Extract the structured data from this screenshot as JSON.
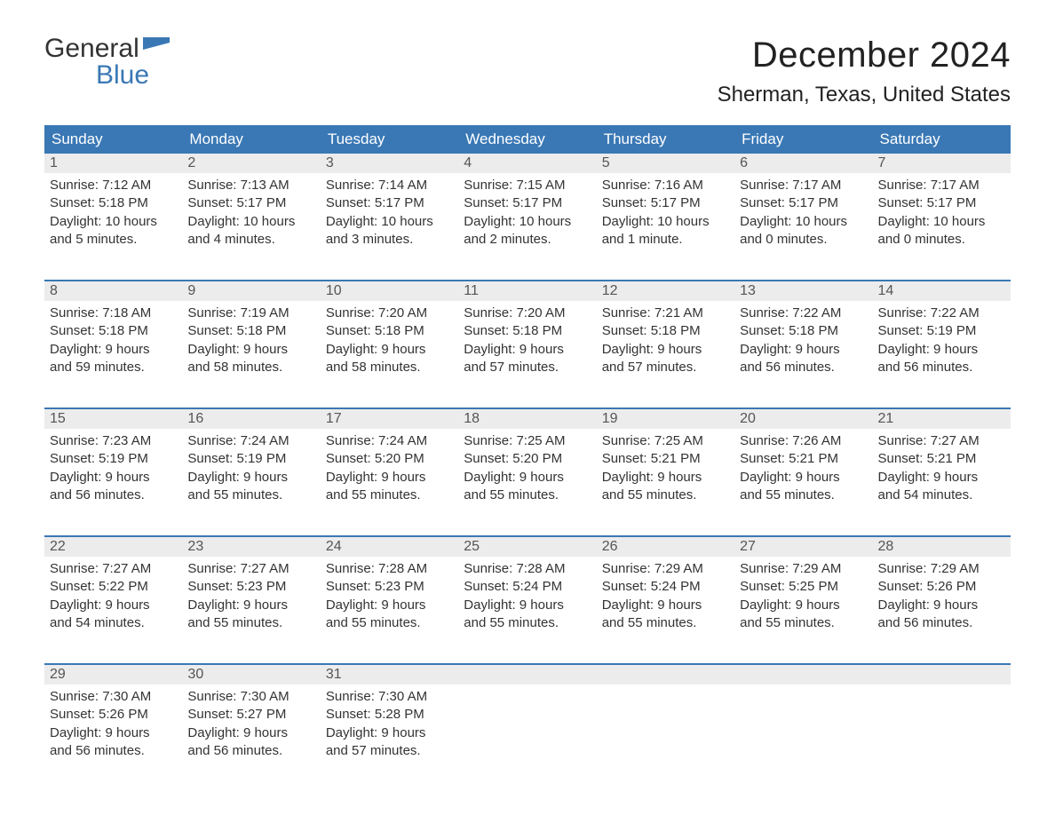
{
  "logo": {
    "line1": "General",
    "line2": "Blue"
  },
  "title": "December 2024",
  "location": "Sherman, Texas, United States",
  "colors": {
    "header_bg": "#3a78b5",
    "header_fg": "#ffffff",
    "daynum_bg": "#ececec",
    "sep_border": "#3a78b5",
    "text": "#333333",
    "logo_blue": "#3a78b5"
  },
  "day_headers": [
    "Sunday",
    "Monday",
    "Tuesday",
    "Wednesday",
    "Thursday",
    "Friday",
    "Saturday"
  ],
  "weeks": [
    [
      {
        "n": "1",
        "sr": "Sunrise: 7:12 AM",
        "ss": "Sunset: 5:18 PM",
        "d1": "Daylight: 10 hours",
        "d2": "and 5 minutes."
      },
      {
        "n": "2",
        "sr": "Sunrise: 7:13 AM",
        "ss": "Sunset: 5:17 PM",
        "d1": "Daylight: 10 hours",
        "d2": "and 4 minutes."
      },
      {
        "n": "3",
        "sr": "Sunrise: 7:14 AM",
        "ss": "Sunset: 5:17 PM",
        "d1": "Daylight: 10 hours",
        "d2": "and 3 minutes."
      },
      {
        "n": "4",
        "sr": "Sunrise: 7:15 AM",
        "ss": "Sunset: 5:17 PM",
        "d1": "Daylight: 10 hours",
        "d2": "and 2 minutes."
      },
      {
        "n": "5",
        "sr": "Sunrise: 7:16 AM",
        "ss": "Sunset: 5:17 PM",
        "d1": "Daylight: 10 hours",
        "d2": "and 1 minute."
      },
      {
        "n": "6",
        "sr": "Sunrise: 7:17 AM",
        "ss": "Sunset: 5:17 PM",
        "d1": "Daylight: 10 hours",
        "d2": "and 0 minutes."
      },
      {
        "n": "7",
        "sr": "Sunrise: 7:17 AM",
        "ss": "Sunset: 5:17 PM",
        "d1": "Daylight: 10 hours",
        "d2": "and 0 minutes."
      }
    ],
    [
      {
        "n": "8",
        "sr": "Sunrise: 7:18 AM",
        "ss": "Sunset: 5:18 PM",
        "d1": "Daylight: 9 hours",
        "d2": "and 59 minutes."
      },
      {
        "n": "9",
        "sr": "Sunrise: 7:19 AM",
        "ss": "Sunset: 5:18 PM",
        "d1": "Daylight: 9 hours",
        "d2": "and 58 minutes."
      },
      {
        "n": "10",
        "sr": "Sunrise: 7:20 AM",
        "ss": "Sunset: 5:18 PM",
        "d1": "Daylight: 9 hours",
        "d2": "and 58 minutes."
      },
      {
        "n": "11",
        "sr": "Sunrise: 7:20 AM",
        "ss": "Sunset: 5:18 PM",
        "d1": "Daylight: 9 hours",
        "d2": "and 57 minutes."
      },
      {
        "n": "12",
        "sr": "Sunrise: 7:21 AM",
        "ss": "Sunset: 5:18 PM",
        "d1": "Daylight: 9 hours",
        "d2": "and 57 minutes."
      },
      {
        "n": "13",
        "sr": "Sunrise: 7:22 AM",
        "ss": "Sunset: 5:18 PM",
        "d1": "Daylight: 9 hours",
        "d2": "and 56 minutes."
      },
      {
        "n": "14",
        "sr": "Sunrise: 7:22 AM",
        "ss": "Sunset: 5:19 PM",
        "d1": "Daylight: 9 hours",
        "d2": "and 56 minutes."
      }
    ],
    [
      {
        "n": "15",
        "sr": "Sunrise: 7:23 AM",
        "ss": "Sunset: 5:19 PM",
        "d1": "Daylight: 9 hours",
        "d2": "and 56 minutes."
      },
      {
        "n": "16",
        "sr": "Sunrise: 7:24 AM",
        "ss": "Sunset: 5:19 PM",
        "d1": "Daylight: 9 hours",
        "d2": "and 55 minutes."
      },
      {
        "n": "17",
        "sr": "Sunrise: 7:24 AM",
        "ss": "Sunset: 5:20 PM",
        "d1": "Daylight: 9 hours",
        "d2": "and 55 minutes."
      },
      {
        "n": "18",
        "sr": "Sunrise: 7:25 AM",
        "ss": "Sunset: 5:20 PM",
        "d1": "Daylight: 9 hours",
        "d2": "and 55 minutes."
      },
      {
        "n": "19",
        "sr": "Sunrise: 7:25 AM",
        "ss": "Sunset: 5:21 PM",
        "d1": "Daylight: 9 hours",
        "d2": "and 55 minutes."
      },
      {
        "n": "20",
        "sr": "Sunrise: 7:26 AM",
        "ss": "Sunset: 5:21 PM",
        "d1": "Daylight: 9 hours",
        "d2": "and 55 minutes."
      },
      {
        "n": "21",
        "sr": "Sunrise: 7:27 AM",
        "ss": "Sunset: 5:21 PM",
        "d1": "Daylight: 9 hours",
        "d2": "and 54 minutes."
      }
    ],
    [
      {
        "n": "22",
        "sr": "Sunrise: 7:27 AM",
        "ss": "Sunset: 5:22 PM",
        "d1": "Daylight: 9 hours",
        "d2": "and 54 minutes."
      },
      {
        "n": "23",
        "sr": "Sunrise: 7:27 AM",
        "ss": "Sunset: 5:23 PM",
        "d1": "Daylight: 9 hours",
        "d2": "and 55 minutes."
      },
      {
        "n": "24",
        "sr": "Sunrise: 7:28 AM",
        "ss": "Sunset: 5:23 PM",
        "d1": "Daylight: 9 hours",
        "d2": "and 55 minutes."
      },
      {
        "n": "25",
        "sr": "Sunrise: 7:28 AM",
        "ss": "Sunset: 5:24 PM",
        "d1": "Daylight: 9 hours",
        "d2": "and 55 minutes."
      },
      {
        "n": "26",
        "sr": "Sunrise: 7:29 AM",
        "ss": "Sunset: 5:24 PM",
        "d1": "Daylight: 9 hours",
        "d2": "and 55 minutes."
      },
      {
        "n": "27",
        "sr": "Sunrise: 7:29 AM",
        "ss": "Sunset: 5:25 PM",
        "d1": "Daylight: 9 hours",
        "d2": "and 55 minutes."
      },
      {
        "n": "28",
        "sr": "Sunrise: 7:29 AM",
        "ss": "Sunset: 5:26 PM",
        "d1": "Daylight: 9 hours",
        "d2": "and 56 minutes."
      }
    ],
    [
      {
        "n": "29",
        "sr": "Sunrise: 7:30 AM",
        "ss": "Sunset: 5:26 PM",
        "d1": "Daylight: 9 hours",
        "d2": "and 56 minutes."
      },
      {
        "n": "30",
        "sr": "Sunrise: 7:30 AM",
        "ss": "Sunset: 5:27 PM",
        "d1": "Daylight: 9 hours",
        "d2": "and 56 minutes."
      },
      {
        "n": "31",
        "sr": "Sunrise: 7:30 AM",
        "ss": "Sunset: 5:28 PM",
        "d1": "Daylight: 9 hours",
        "d2": "and 57 minutes."
      },
      null,
      null,
      null,
      null
    ]
  ]
}
